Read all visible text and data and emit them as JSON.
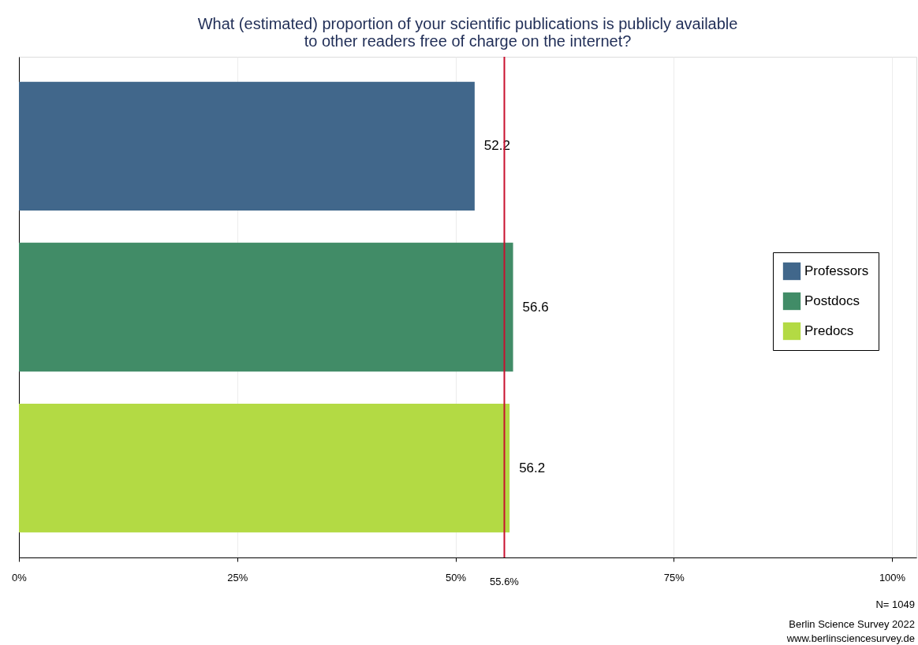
{
  "chart_data": {
    "type": "bar",
    "orientation": "horizontal",
    "title": "What (estimated) proportion of your scientific publications is publicly available\nto other readers free of charge on the internet?",
    "categories": [
      null
    ],
    "series": [
      {
        "name": "Professors",
        "color": "#41678b",
        "values": [
          52.2
        ]
      },
      {
        "name": "Postdocs",
        "color": "#418c67",
        "values": [
          56.6
        ]
      },
      {
        "name": "Predocs",
        "color": "#b3da44",
        "values": [
          56.2
        ]
      }
    ],
    "xlim": [
      0,
      102.8
    ],
    "xticks": [
      {
        "value": 0,
        "label": "0%"
      },
      {
        "value": 25,
        "label": "25%"
      },
      {
        "value": 50,
        "label": "50%"
      },
      {
        "value": 75,
        "label": "75%"
      },
      {
        "value": 100,
        "label": "100%"
      }
    ],
    "ref_lines": [
      {
        "axis": "x",
        "value": 55.6,
        "label": "55.6%",
        "color": "#c8102e"
      }
    ],
    "grid": "x",
    "legend": "right",
    "data_labels": true,
    "annotations": [
      "N= 1049",
      "Berlin Science Survey 2022",
      "www.berlinsciencesurvey.de"
    ]
  }
}
